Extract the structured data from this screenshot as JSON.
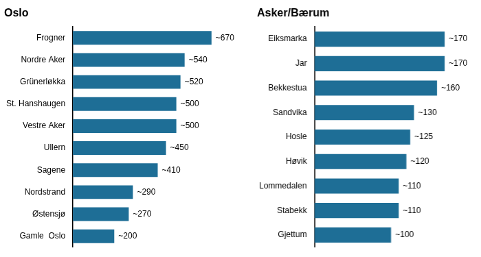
{
  "chart_data": [
    {
      "type": "bar",
      "orientation": "horizontal",
      "title": "Oslo",
      "categories": [
        "Frogner",
        "Nordre Aker",
        "Grünerløkka",
        "St. Hanshaugen",
        "Vestre Aker",
        "Ullern",
        "Sagene",
        "Nordstrand",
        "Østensjø",
        "Gamle  Oslo"
      ],
      "values": [
        670,
        540,
        520,
        500,
        500,
        450,
        410,
        290,
        270,
        200
      ],
      "value_labels": [
        "~670",
        "~540",
        "~520",
        "~500",
        "~500",
        "~450",
        "~410",
        "~290",
        "~270",
        "~200"
      ],
      "data_labels": true,
      "color": "#1e6e96",
      "xlim": [
        0,
        817.4
      ],
      "grid": false,
      "tick_labels": "y"
    },
    {
      "type": "bar",
      "orientation": "horizontal",
      "title": "Asker/Bærum",
      "categories": [
        "Eiksmarka",
        "Jar",
        "Bekkestua",
        "Sandvika",
        "Hosle",
        "Høvik",
        "Lommedalen",
        "Stabekk",
        "Gjettum"
      ],
      "values": [
        170,
        170,
        160,
        130,
        125,
        120,
        110,
        110,
        100
      ],
      "value_labels": [
        "~170",
        "~170",
        "~160",
        "~130",
        "~125",
        "~120",
        "~110",
        "~110",
        "~100"
      ],
      "data_labels": true,
      "color": "#1e6e96",
      "xlim": [
        0,
        207.4
      ],
      "grid": false,
      "tick_labels": "y"
    }
  ]
}
